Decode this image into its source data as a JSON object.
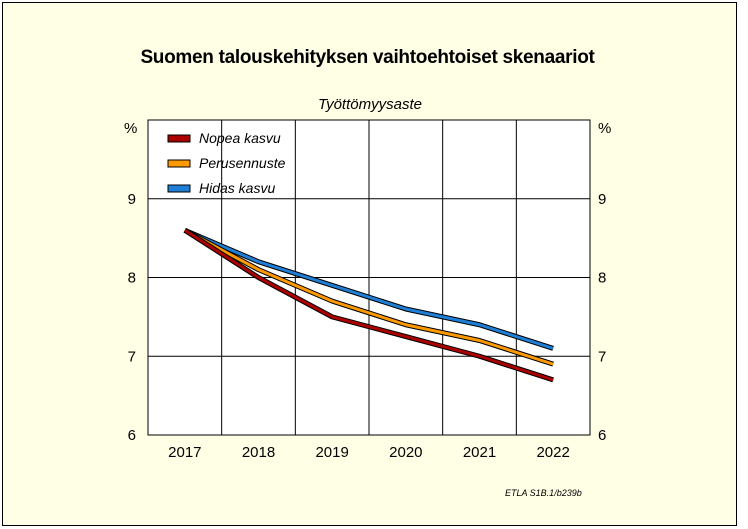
{
  "title": "Suomen talouskehityksen vaihtoehtoiset skenaariot",
  "footnote": "ETLA S1B.1/b239b",
  "chart_data": {
    "type": "line",
    "title": "Työttömyysaste",
    "ylabel": "%",
    "ylabel_right": "%",
    "x": [
      "2017",
      "2018",
      "2019",
      "2020",
      "2021",
      "2022"
    ],
    "ylim": [
      6,
      10
    ],
    "yticks": [
      6,
      7,
      8,
      9
    ],
    "grid": true,
    "legend_position": "top-left",
    "series": [
      {
        "name": "Nopea kasvu",
        "color": "#aa0000",
        "values": [
          8.6,
          8.0,
          7.5,
          7.25,
          7.0,
          6.7
        ]
      },
      {
        "name": "Perusennuste",
        "color": "#ff9900",
        "values": [
          8.6,
          8.1,
          7.7,
          7.4,
          7.2,
          6.9
        ]
      },
      {
        "name": "Hidas kasvu",
        "color": "#1f7fd6",
        "values": [
          8.6,
          8.2,
          7.9,
          7.6,
          7.4,
          7.1
        ]
      }
    ]
  }
}
